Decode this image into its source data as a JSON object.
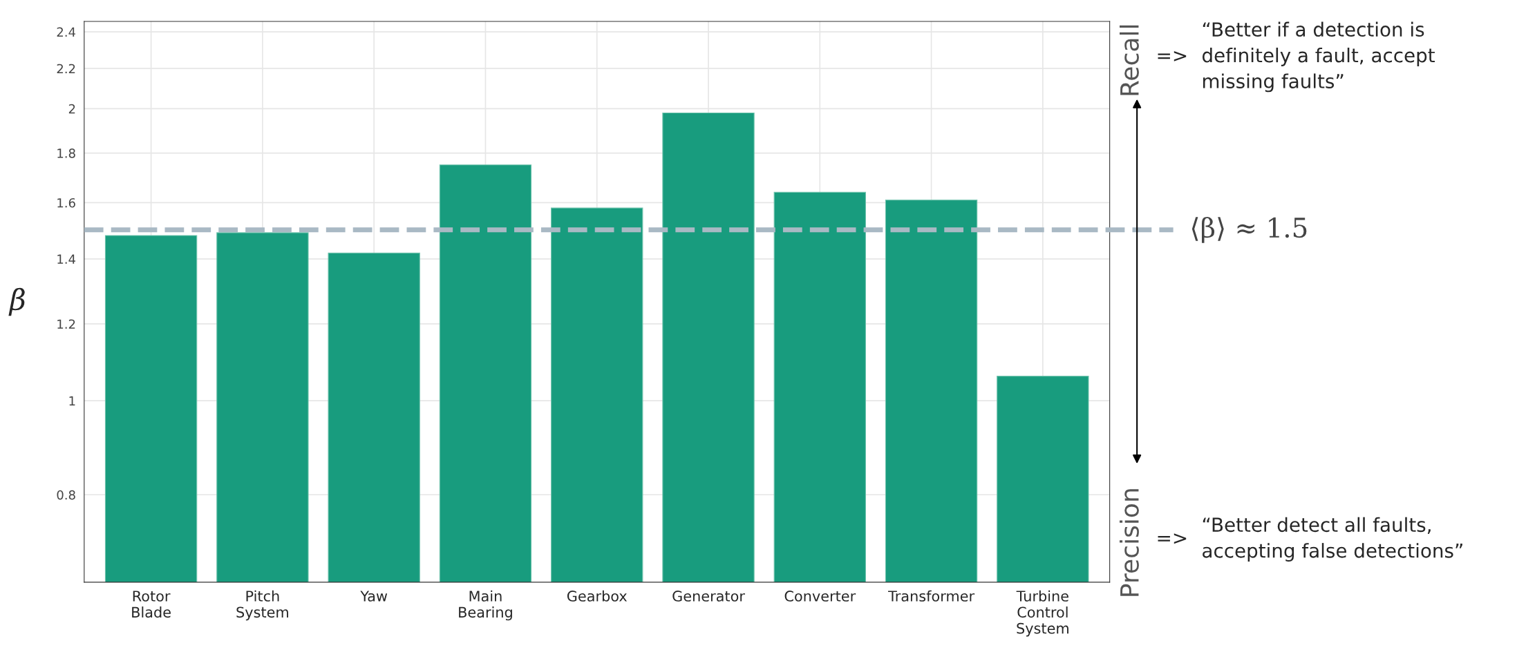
{
  "chart_data": {
    "type": "bar",
    "ylabel": "β",
    "categories": [
      "Rotor\nBlade",
      "Pitch\nSystem",
      "Yaw",
      "Main\nBearing",
      "Gearbox",
      "Generator",
      "Converter",
      "Transformer",
      "Turbine\nControl\nSystem"
    ],
    "values": [
      1.48,
      1.49,
      1.42,
      1.75,
      1.58,
      1.98,
      1.64,
      1.61,
      1.06
    ],
    "color": "#189c7e",
    "log": true,
    "ylim": [
      0.65,
      2.46
    ],
    "yticks": [
      0.8,
      1,
      1.2,
      1.4,
      1.6,
      1.8,
      2,
      2.2,
      2.4
    ],
    "grid": true,
    "ref_lines": [
      {
        "axis": "y",
        "value": 1.5,
        "label": "⟨β⟩ ≈ 1.5",
        "color": "#a9b9c4",
        "line_style": "dashed"
      }
    ],
    "annotations": [
      "Recall",
      "Precision",
      "=>",
      "“Better if a detection is\ndefinitely a fault, accept\nmissing faults”",
      "=>",
      "“Better detect all faults,\naccepting false detections”"
    ]
  }
}
